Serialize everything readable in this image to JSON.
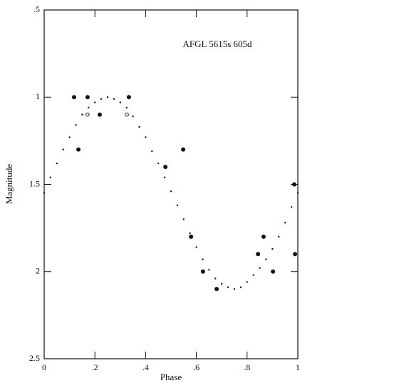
{
  "chart_data": {
    "type": "scatter",
    "annotation": "AFGL 5615s   605d",
    "xlabel": "Phase",
    "ylabel": "Magnitude",
    "xlim": [
      0,
      1
    ],
    "ylim": [
      0.5,
      2.5
    ],
    "y_inverted": true,
    "xticks": [
      0,
      {
        "value": 0.2,
        "label": ".2"
      },
      {
        "value": 0.4,
        "label": ".4"
      },
      {
        "value": 0.6,
        "label": ".6"
      },
      {
        "value": 0.8,
        "label": ".8"
      },
      1
    ],
    "yticks": [
      {
        "value": 0.5,
        "label": ".5"
      },
      1,
      1.5,
      2,
      2.5
    ],
    "series": [
      {
        "marker": "small",
        "color": "#111111",
        "x": [
          0,
          0.025,
          0.05,
          0.075,
          0.1,
          0.125,
          0.15,
          0.175,
          0.2,
          0.225,
          0.25,
          0.275,
          0.3,
          0.325,
          0.35,
          0.375,
          0.4,
          0.425,
          0.45,
          0.475,
          0.5,
          0.525,
          0.55,
          0.575,
          0.6,
          0.625,
          0.65,
          0.675,
          0.7,
          0.725,
          0.75,
          0.775,
          0.8,
          0.825,
          0.85,
          0.875,
          0.9,
          0.925,
          0.95,
          0.975,
          1
        ],
        "values": [
          1.55,
          1.46,
          1.38,
          1.3,
          1.23,
          1.16,
          1.1,
          1.06,
          1.03,
          1.01,
          1.0,
          1.01,
          1.03,
          1.06,
          1.11,
          1.17,
          1.23,
          1.31,
          1.38,
          1.46,
          1.54,
          1.62,
          1.7,
          1.78,
          1.86,
          1.93,
          1.99,
          2.04,
          2.07,
          2.09,
          2.1,
          2.09,
          2.06,
          2.02,
          1.98,
          1.93,
          1.87,
          1.8,
          1.72,
          1.63,
          1.55
        ]
      },
      {
        "marker": "filled",
        "color": "#111111",
        "x": [
          0.118,
          0.171,
          0.135,
          0.219,
          0.334,
          0.548,
          0.478,
          0.579,
          0.626,
          0.68,
          0.843,
          0.865,
          0.902,
          0.986,
          0.989
        ],
        "values": [
          1.0,
          1.0,
          1.3,
          1.1,
          1.0,
          1.3,
          1.4,
          1.8,
          2.0,
          2.1,
          1.9,
          1.8,
          2.0,
          1.5,
          1.9
        ]
      },
      {
        "marker": "open",
        "color": "#111111",
        "x": [
          0.171,
          0.326
        ],
        "values": [
          1.1,
          1.1
        ]
      }
    ]
  }
}
